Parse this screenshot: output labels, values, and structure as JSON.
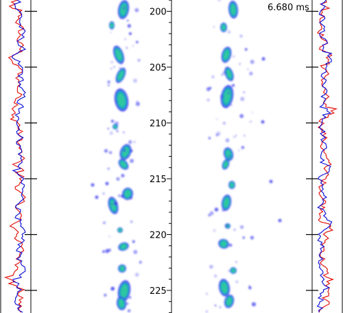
{
  "time_readout": "6.680 ms",
  "axis": {
    "tick_labels": [
      "200",
      "205",
      "210",
      "215",
      "220",
      "225"
    ]
  },
  "colors": {
    "profile_red": "#e3140f",
    "profile_blue": "#1414d8",
    "blob_outer": "#3d3df0",
    "blob_mid": "#18a0c8",
    "blob_core": "#2ec7a0",
    "background": "#ffffff"
  }
}
